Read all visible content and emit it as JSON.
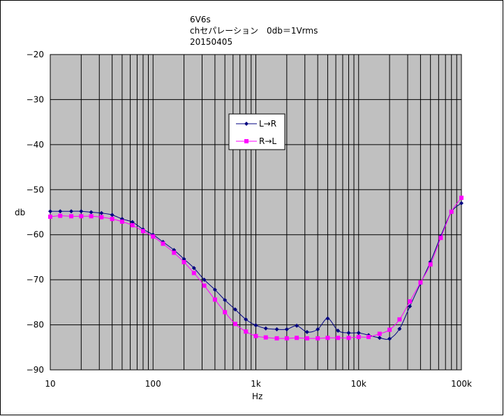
{
  "chart_data": {
    "type": "line",
    "title_lines": [
      "6V6s",
      "chセパレーション　0db＝1Vrms",
      "20150405"
    ],
    "xlabel": "Hz",
    "ylabel": "db",
    "x_scale": "log",
    "xlim": [
      10,
      100000
    ],
    "ylim": [
      -90,
      -20
    ],
    "x_ticks": [
      {
        "value": 10,
        "label": "10"
      },
      {
        "value": 100,
        "label": "100"
      },
      {
        "value": 1000,
        "label": "1k"
      },
      {
        "value": 10000,
        "label": "10k"
      },
      {
        "value": 100000,
        "label": "100k"
      }
    ],
    "y_ticks": [
      -20,
      -30,
      -40,
      -50,
      -60,
      -70,
      -80,
      -90
    ],
    "grid": true,
    "legend_position": "upper-middle",
    "series": [
      {
        "name": "L→R",
        "color": "#000080",
        "marker": "diamond",
        "x": [
          10,
          12.5,
          16,
          20,
          25,
          31.5,
          40,
          50,
          63,
          80,
          100,
          125,
          160,
          200,
          250,
          315,
          400,
          500,
          630,
          800,
          1000,
          1250,
          1600,
          2000,
          2500,
          3150,
          4000,
          5000,
          6300,
          8000,
          10000,
          12500,
          16000,
          20000,
          25000,
          31500,
          40000,
          50000,
          63000,
          80000,
          100000
        ],
        "values": [
          -54.8,
          -54.8,
          -54.8,
          -54.8,
          -55.0,
          -55.2,
          -55.6,
          -56.5,
          -57.2,
          -58.8,
          -60.0,
          -61.6,
          -63.4,
          -65.4,
          -67.4,
          -70.0,
          -72.2,
          -74.5,
          -76.6,
          -78.8,
          -80.1,
          -80.8,
          -81.0,
          -81.0,
          -80.2,
          -81.6,
          -81.0,
          -78.6,
          -81.3,
          -81.8,
          -81.8,
          -82.3,
          -82.9,
          -83.1,
          -80.9,
          -75.9,
          -70.8,
          -66.0,
          -60.3,
          -54.9,
          -53.0
        ]
      },
      {
        "name": "R→L",
        "color": "#ff00ff",
        "marker": "square",
        "x": [
          10,
          12.5,
          16,
          20,
          25,
          31.5,
          40,
          50,
          63,
          80,
          100,
          125,
          160,
          200,
          250,
          315,
          400,
          500,
          630,
          800,
          1000,
          1250,
          1600,
          2000,
          2500,
          3150,
          4000,
          5000,
          6300,
          8000,
          10000,
          12500,
          16000,
          20000,
          25000,
          31500,
          40000,
          50000,
          63000,
          80000,
          100000
        ],
        "values": [
          -56.0,
          -55.8,
          -55.9,
          -55.9,
          -55.9,
          -56.1,
          -56.5,
          -57.1,
          -57.9,
          -59.2,
          -60.4,
          -62.0,
          -64.0,
          -66.1,
          -68.5,
          -71.3,
          -74.4,
          -77.2,
          -79.8,
          -81.5,
          -82.5,
          -82.8,
          -83.0,
          -83.0,
          -82.9,
          -83.0,
          -83.0,
          -82.9,
          -82.9,
          -82.9,
          -82.7,
          -82.7,
          -82.0,
          -81.1,
          -78.8,
          -74.8,
          -70.6,
          -66.6,
          -60.7,
          -54.9,
          -51.8
        ]
      }
    ]
  }
}
